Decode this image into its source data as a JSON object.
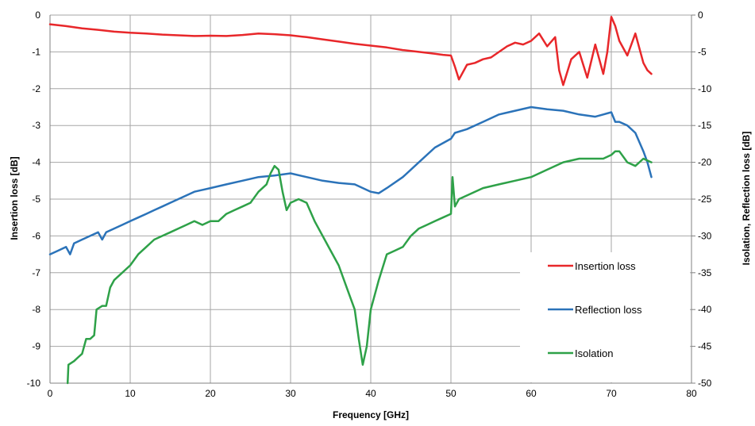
{
  "chart_data": {
    "type": "line",
    "xlabel": "Frequency [GHz]",
    "ylabel_left": "Insertion loss [dB]",
    "ylabel_right": "Isolation, Reflection loss [dB]",
    "xlim": [
      0,
      80
    ],
    "ylim_left": [
      -10,
      0
    ],
    "ylim_right": [
      -50,
      0
    ],
    "x_ticks": [
      "0",
      "10",
      "20",
      "30",
      "40",
      "50",
      "60",
      "70",
      "80"
    ],
    "y_left_ticks": [
      "0",
      "-1",
      "-2",
      "-3",
      "-4",
      "-5",
      "-6",
      "-7",
      "-8",
      "-9",
      "-10"
    ],
    "y_right_ticks": [
      "0",
      "-5",
      "-10",
      "-15",
      "-20",
      "-25",
      "-30",
      "-35",
      "-40",
      "-45",
      "-50"
    ],
    "grid": true,
    "legend_position": "right-bottom",
    "series": [
      {
        "name": "Insertion loss",
        "color": "#e8272a",
        "axis": "left",
        "points": [
          [
            0,
            -0.25
          ],
          [
            2,
            -0.3
          ],
          [
            4,
            -0.36
          ],
          [
            6,
            -0.4
          ],
          [
            8,
            -0.45
          ],
          [
            10,
            -0.48
          ],
          [
            12,
            -0.5
          ],
          [
            14,
            -0.53
          ],
          [
            16,
            -0.55
          ],
          [
            18,
            -0.57
          ],
          [
            20,
            -0.56
          ],
          [
            22,
            -0.57
          ],
          [
            24,
            -0.54
          ],
          [
            26,
            -0.5
          ],
          [
            28,
            -0.52
          ],
          [
            30,
            -0.55
          ],
          [
            32,
            -0.6
          ],
          [
            34,
            -0.66
          ],
          [
            36,
            -0.72
          ],
          [
            38,
            -0.78
          ],
          [
            40,
            -0.83
          ],
          [
            42,
            -0.88
          ],
          [
            44,
            -0.95
          ],
          [
            46,
            -1.0
          ],
          [
            48,
            -1.05
          ],
          [
            49,
            -1.08
          ],
          [
            50,
            -1.1
          ],
          [
            50.5,
            -1.4
          ],
          [
            51,
            -1.75
          ],
          [
            52,
            -1.35
          ],
          [
            53,
            -1.3
          ],
          [
            54,
            -1.2
          ],
          [
            55,
            -1.15
          ],
          [
            56,
            -1.0
          ],
          [
            57,
            -0.85
          ],
          [
            58,
            -0.75
          ],
          [
            59,
            -0.8
          ],
          [
            60,
            -0.7
          ],
          [
            61,
            -0.5
          ],
          [
            62,
            -0.85
          ],
          [
            63,
            -0.6
          ],
          [
            63.5,
            -1.5
          ],
          [
            64,
            -1.9
          ],
          [
            65,
            -1.2
          ],
          [
            66,
            -1.0
          ],
          [
            67,
            -1.7
          ],
          [
            68,
            -0.8
          ],
          [
            69,
            -1.6
          ],
          [
            69.5,
            -1.0
          ],
          [
            70,
            -0.05
          ],
          [
            70.5,
            -0.3
          ],
          [
            71,
            -0.7
          ],
          [
            72,
            -1.1
          ],
          [
            73,
            -0.5
          ],
          [
            74,
            -1.3
          ],
          [
            74.5,
            -1.5
          ],
          [
            75,
            -1.6
          ]
        ]
      },
      {
        "name": "Reflection loss",
        "color": "#2b73b9",
        "axis": "right",
        "points": [
          [
            0,
            -32.5
          ],
          [
            1,
            -32.0
          ],
          [
            2,
            -31.5
          ],
          [
            2.5,
            -32.5
          ],
          [
            3,
            -31.0
          ],
          [
            4,
            -30.5
          ],
          [
            5,
            -30.0
          ],
          [
            6,
            -29.5
          ],
          [
            6.5,
            -30.5
          ],
          [
            7,
            -29.5
          ],
          [
            8,
            -29.0
          ],
          [
            9,
            -28.5
          ],
          [
            10,
            -28.0
          ],
          [
            11,
            -27.5
          ],
          [
            12,
            -27.0
          ],
          [
            13,
            -26.5
          ],
          [
            14,
            -26.0
          ],
          [
            15,
            -25.5
          ],
          [
            16,
            -25.0
          ],
          [
            17,
            -24.5
          ],
          [
            18,
            -24.0
          ],
          [
            20,
            -23.5
          ],
          [
            22,
            -23.0
          ],
          [
            24,
            -22.5
          ],
          [
            26,
            -22.0
          ],
          [
            28,
            -21.8
          ],
          [
            30,
            -21.5
          ],
          [
            32,
            -22.0
          ],
          [
            34,
            -22.5
          ],
          [
            36,
            -22.8
          ],
          [
            38,
            -23.0
          ],
          [
            40,
            -24.0
          ],
          [
            41,
            -24.2
          ],
          [
            42,
            -23.5
          ],
          [
            44,
            -22.0
          ],
          [
            46,
            -20.0
          ],
          [
            48,
            -18.0
          ],
          [
            50,
            -16.8
          ],
          [
            50.5,
            -16.0
          ],
          [
            52,
            -15.5
          ],
          [
            54,
            -14.5
          ],
          [
            56,
            -13.5
          ],
          [
            58,
            -13.0
          ],
          [
            60,
            -12.5
          ],
          [
            62,
            -12.8
          ],
          [
            64,
            -13.0
          ],
          [
            66,
            -13.5
          ],
          [
            68,
            -13.8
          ],
          [
            69,
            -13.5
          ],
          [
            70,
            -13.2
          ],
          [
            70.5,
            -14.5
          ],
          [
            71,
            -14.5
          ],
          [
            72,
            -15.0
          ],
          [
            73,
            -16.0
          ],
          [
            74,
            -18.5
          ],
          [
            74.5,
            -20.0
          ],
          [
            75,
            -22.0
          ]
        ]
      },
      {
        "name": "Isolation",
        "color": "#2ea148",
        "axis": "right",
        "points": [
          [
            2.2,
            -50.0
          ],
          [
            2.3,
            -47.5
          ],
          [
            3,
            -47.0
          ],
          [
            3.5,
            -46.5
          ],
          [
            4,
            -46.0
          ],
          [
            4.5,
            -44.0
          ],
          [
            5,
            -44.0
          ],
          [
            5.5,
            -43.5
          ],
          [
            5.8,
            -40.0
          ],
          [
            6.5,
            -39.5
          ],
          [
            7,
            -39.5
          ],
          [
            7.5,
            -37.0
          ],
          [
            8,
            -36.0
          ],
          [
            9,
            -35.0
          ],
          [
            10,
            -34.0
          ],
          [
            11,
            -32.5
          ],
          [
            12,
            -31.5
          ],
          [
            13,
            -30.5
          ],
          [
            14,
            -30.0
          ],
          [
            15,
            -29.5
          ],
          [
            16,
            -29.0
          ],
          [
            17,
            -28.5
          ],
          [
            18,
            -28.0
          ],
          [
            19,
            -28.5
          ],
          [
            20,
            -28.0
          ],
          [
            21,
            -28.0
          ],
          [
            22,
            -27.0
          ],
          [
            23,
            -26.5
          ],
          [
            24,
            -26.0
          ],
          [
            25,
            -25.5
          ],
          [
            26,
            -24.0
          ],
          [
            27,
            -23.0
          ],
          [
            27.5,
            -21.5
          ],
          [
            28,
            -20.5
          ],
          [
            28.5,
            -21.0
          ],
          [
            29,
            -24.0
          ],
          [
            29.5,
            -26.5
          ],
          [
            30,
            -25.5
          ],
          [
            31,
            -25.0
          ],
          [
            32,
            -25.5
          ],
          [
            33,
            -28.0
          ],
          [
            34,
            -30.0
          ],
          [
            35,
            -32.0
          ],
          [
            36,
            -34.0
          ],
          [
            37,
            -37.0
          ],
          [
            38,
            -40.0
          ],
          [
            38.5,
            -44.0
          ],
          [
            39,
            -47.5
          ],
          [
            39.5,
            -45.0
          ],
          [
            40,
            -40.0
          ],
          [
            41,
            -36.0
          ],
          [
            42,
            -32.5
          ],
          [
            43,
            -32.0
          ],
          [
            44,
            -31.5
          ],
          [
            45,
            -30.0
          ],
          [
            46,
            -29.0
          ],
          [
            47,
            -28.5
          ],
          [
            48,
            -28.0
          ],
          [
            49,
            -27.5
          ],
          [
            50,
            -27.0
          ],
          [
            50.2,
            -22.0
          ],
          [
            50.5,
            -26.0
          ],
          [
            51,
            -25.0
          ],
          [
            52,
            -24.5
          ],
          [
            53,
            -24.0
          ],
          [
            54,
            -23.5
          ],
          [
            56,
            -23.0
          ],
          [
            58,
            -22.5
          ],
          [
            60,
            -22.0
          ],
          [
            62,
            -21.0
          ],
          [
            64,
            -20.0
          ],
          [
            66,
            -19.5
          ],
          [
            68,
            -19.5
          ],
          [
            69,
            -19.5
          ],
          [
            70,
            -19.0
          ],
          [
            70.5,
            -18.5
          ],
          [
            71,
            -18.5
          ],
          [
            72,
            -20.0
          ],
          [
            73,
            -20.5
          ],
          [
            74,
            -19.5
          ],
          [
            75,
            -20.0
          ]
        ]
      }
    ]
  }
}
